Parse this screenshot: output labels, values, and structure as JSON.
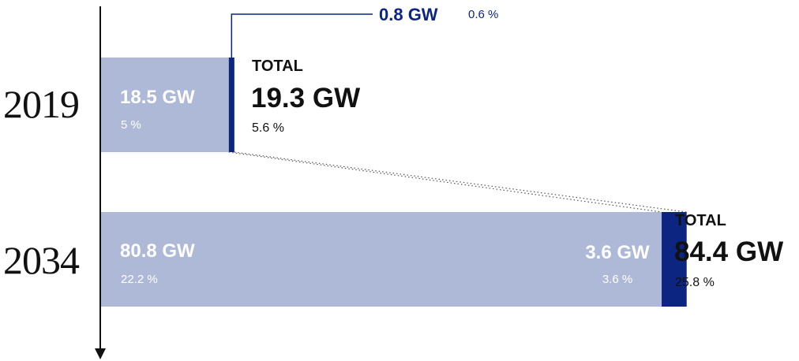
{
  "colors": {
    "light": "#adb9d7",
    "dark": "#0b2580",
    "axis": "#111111",
    "text": "#111111"
  },
  "chart_data": {
    "type": "bar",
    "orientation": "horizontal",
    "stacked": true,
    "categories": [
      "2019",
      "2034"
    ],
    "series": [
      {
        "values": [
          18.5,
          80.8
        ],
        "labels": [
          "18.5 GW",
          "80.8 GW"
        ],
        "percents": [
          "5 %",
          "22.2 %"
        ],
        "color": "#adb9d7"
      },
      {
        "values": [
          0.8,
          3.6
        ],
        "labels": [
          "0.8 GW",
          "3.6 GW"
        ],
        "percents": [
          "0.6 %",
          "3.6 %"
        ],
        "color": "#0b2580"
      }
    ],
    "totals": [
      {
        "label": "TOTAL",
        "value": "19.3 GW",
        "percent": "5.6 %"
      },
      {
        "label": "TOTAL",
        "value": "84.4 GW",
        "percent": "25.8 %"
      }
    ],
    "title": "",
    "xlabel": "",
    "ylabel": "",
    "grid": false,
    "legend": "none"
  }
}
